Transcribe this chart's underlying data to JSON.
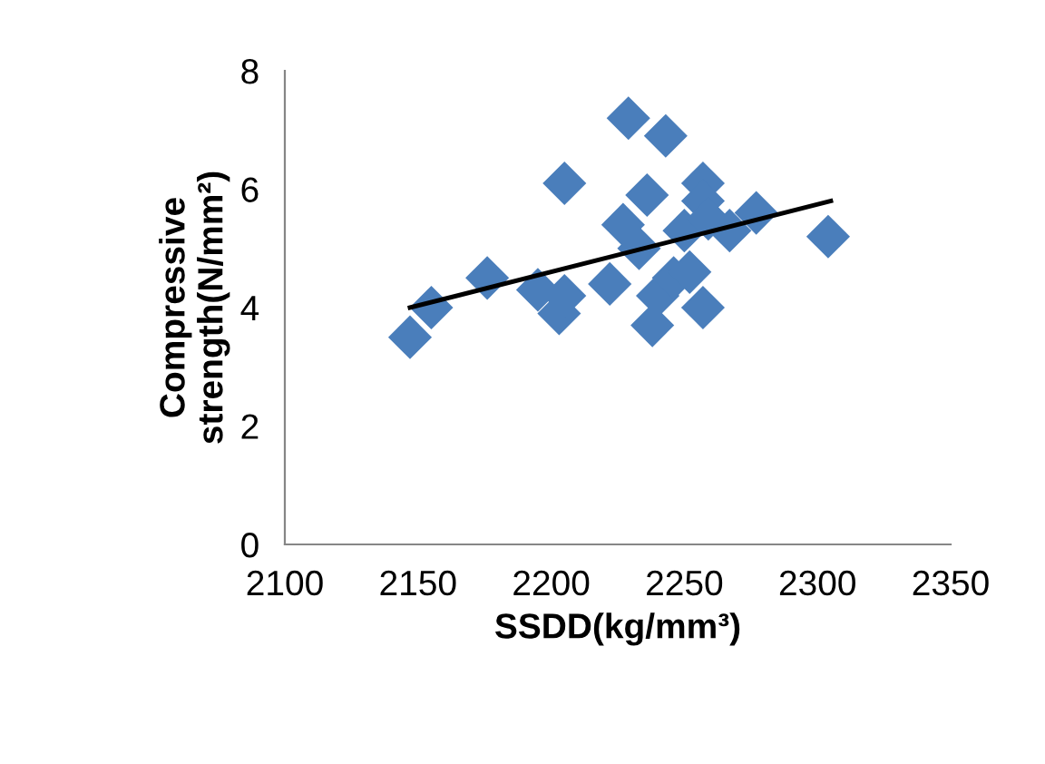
{
  "chart_data": {
    "type": "scatter",
    "xlabel": "SSDD(kg/mm³)",
    "ylabel": "Compressive\nstrength(N/mm²)",
    "xlim": [
      2100,
      2350
    ],
    "xticks": [
      2100,
      2150,
      2200,
      2250,
      2300,
      2350
    ],
    "ylim": [
      0,
      8
    ],
    "yticks": [
      0,
      2,
      4,
      6,
      8
    ],
    "grid": false,
    "legend": false,
    "series": [
      {
        "marker": "diamond",
        "color": "#4a7ebb",
        "x": [
          2147,
          2155,
          2176,
          2195,
          2205,
          2203,
          2205,
          2222,
          2229,
          2227,
          2236,
          2233,
          2238,
          2240,
          2243,
          2246,
          2250,
          2252,
          2257,
          2257,
          2259,
          2257,
          2267,
          2277,
          2304
        ],
        "values": [
          3.5,
          4.0,
          4.5,
          4.3,
          6.1,
          3.9,
          4.2,
          4.4,
          7.2,
          5.4,
          5.9,
          5.0,
          3.7,
          4.2,
          6.9,
          4.5,
          5.3,
          4.6,
          6.1,
          5.8,
          5.5,
          4.0,
          5.3,
          5.6,
          5.2
        ]
      },
      {
        "type": "line",
        "color": "#000000",
        "x": [
          2147,
          2305
        ],
        "values": [
          4.0,
          5.8
        ]
      }
    ]
  }
}
